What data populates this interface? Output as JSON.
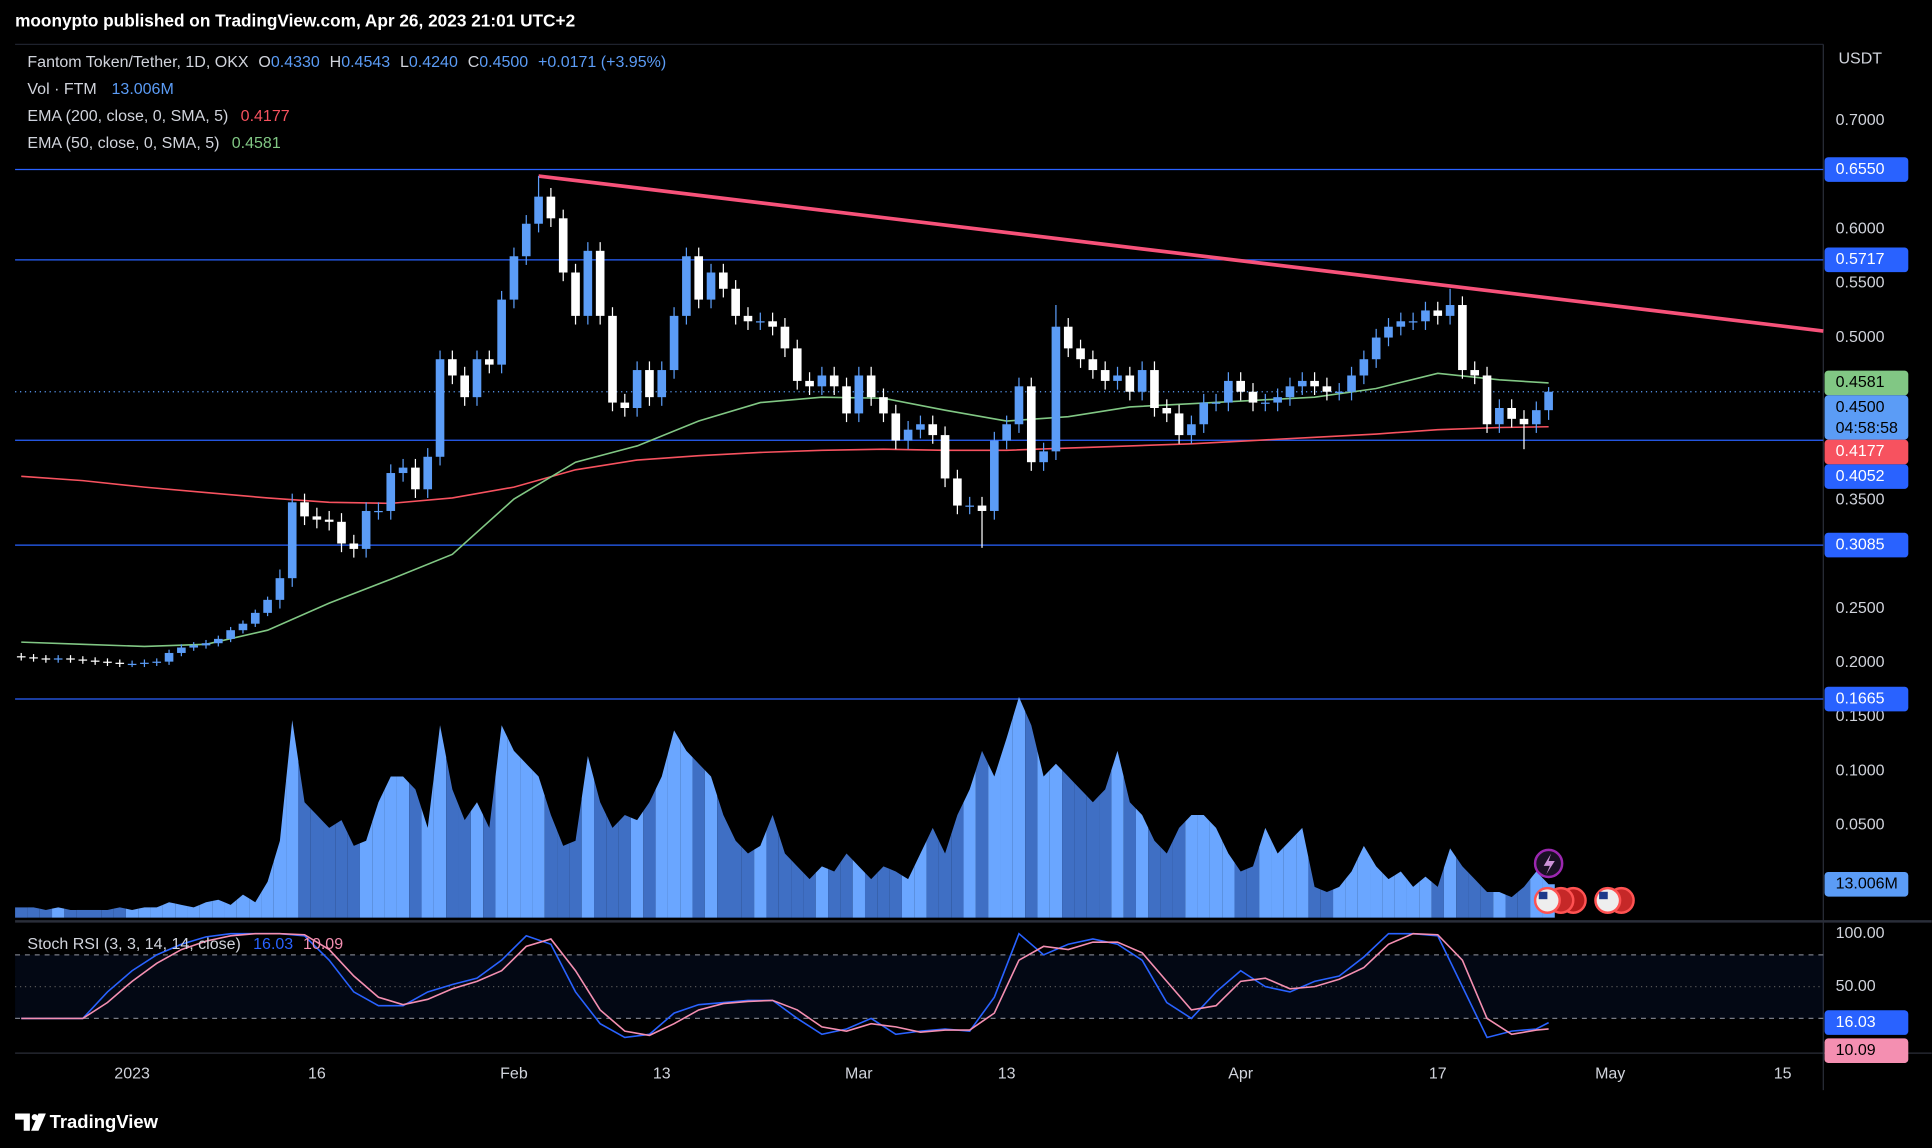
{
  "header": "moonypto published on TradingView.com, Apr 26, 2023 21:01 UTC+2",
  "footer": "TradingView",
  "chart_data": {
    "type": "candlestick",
    "legend": {
      "symbol": "Fantom Token/Tether, 1D, OKX",
      "ohlc": [
        [
          "O",
          "0.4330"
        ],
        [
          "H",
          "0.4543"
        ],
        [
          "L",
          "0.4240"
        ],
        [
          "C",
          "0.4500"
        ]
      ],
      "change": "+0.0171 (+3.95%)"
    },
    "axis_unit": "USDT",
    "up_color": "#5b9cf6",
    "down_color": "#ffffff",
    "xlim": [
      -0.5,
      146.3
    ],
    "xticks": [
      {
        "value": 9,
        "label": "2023"
      },
      {
        "value": 24,
        "label": "16"
      },
      {
        "value": 40,
        "label": "Feb"
      },
      {
        "value": 52,
        "label": "13"
      },
      {
        "value": 68,
        "label": "Mar"
      },
      {
        "value": 80,
        "label": "13"
      },
      {
        "value": 99,
        "label": "Apr"
      },
      {
        "value": 115,
        "label": "17"
      },
      {
        "value": 129,
        "label": "May"
      },
      {
        "value": 143,
        "label": "15"
      }
    ],
    "ylim": [
      -0.0352,
      0.7705
    ],
    "yticks": [
      {
        "value": 0.7,
        "label": "0.7000"
      },
      {
        "value": 0.6,
        "label": "0.6000"
      },
      {
        "value": 0.55,
        "label": "0.5500"
      },
      {
        "value": 0.5,
        "label": "0.5000"
      },
      {
        "value": 0.35,
        "label": "0.3500"
      },
      {
        "value": 0.25,
        "label": "0.2500"
      },
      {
        "value": 0.2,
        "label": "0.2000"
      },
      {
        "value": 0.15,
        "label": "0.1500"
      },
      {
        "value": 0.1,
        "label": "0.1000"
      },
      {
        "value": 0.05,
        "label": "0.0500"
      }
    ],
    "grid": false,
    "open": [
      0.206,
      0.205,
      0.204,
      0.203,
      0.204,
      0.203,
      0.202,
      0.201,
      0.2,
      0.199,
      0.199,
      0.2,
      0.201,
      0.209,
      0.214,
      0.216,
      0.218,
      0.222,
      0.23,
      0.236,
      0.246,
      0.258,
      0.278,
      0.348,
      0.335,
      0.332,
      0.33,
      0.31,
      0.305,
      0.34,
      0.34,
      0.375,
      0.38,
      0.36,
      0.39,
      0.48,
      0.465,
      0.445,
      0.48,
      0.475,
      0.535,
      0.575,
      0.605,
      0.63,
      0.61,
      0.56,
      0.52,
      0.58,
      0.52,
      0.44,
      0.435,
      0.47,
      0.445,
      0.47,
      0.52,
      0.575,
      0.535,
      0.56,
      0.545,
      0.52,
      0.515,
      0.515,
      0.51,
      0.49,
      0.46,
      0.455,
      0.465,
      0.455,
      0.43,
      0.465,
      0.445,
      0.43,
      0.405,
      0.415,
      0.42,
      0.41,
      0.37,
      0.345,
      0.345,
      0.34,
      0.405,
      0.42,
      0.455,
      0.385,
      0.395,
      0.51,
      0.49,
      0.48,
      0.47,
      0.46,
      0.465,
      0.45,
      0.47,
      0.435,
      0.43,
      0.41,
      0.42,
      0.44,
      0.44,
      0.46,
      0.45,
      0.44,
      0.44,
      0.445,
      0.455,
      0.46,
      0.455,
      0.45,
      0.45,
      0.465,
      0.48,
      0.5,
      0.51,
      0.515,
      0.515,
      0.525,
      0.52,
      0.53,
      0.47,
      0.465,
      0.42,
      0.435,
      0.425,
      0.42,
      0.433
    ],
    "high": [
      0.209,
      0.208,
      0.207,
      0.207,
      0.207,
      0.206,
      0.205,
      0.204,
      0.203,
      0.202,
      0.203,
      0.204,
      0.212,
      0.217,
      0.219,
      0.221,
      0.225,
      0.233,
      0.239,
      0.249,
      0.261,
      0.286,
      0.356,
      0.356,
      0.343,
      0.34,
      0.338,
      0.318,
      0.348,
      0.348,
      0.383,
      0.388,
      0.388,
      0.398,
      0.488,
      0.488,
      0.473,
      0.488,
      0.488,
      0.543,
      0.583,
      0.613,
      0.649,
      0.638,
      0.618,
      0.568,
      0.588,
      0.588,
      0.528,
      0.448,
      0.478,
      0.478,
      0.478,
      0.528,
      0.583,
      0.583,
      0.568,
      0.568,
      0.553,
      0.528,
      0.523,
      0.523,
      0.518,
      0.498,
      0.468,
      0.473,
      0.473,
      0.463,
      0.473,
      0.473,
      0.453,
      0.438,
      0.423,
      0.428,
      0.428,
      0.418,
      0.378,
      0.353,
      0.353,
      0.413,
      0.428,
      0.463,
      0.463,
      0.403,
      0.53,
      0.518,
      0.498,
      0.488,
      0.478,
      0.473,
      0.473,
      0.478,
      0.478,
      0.443,
      0.438,
      0.428,
      0.448,
      0.448,
      0.468,
      0.468,
      0.458,
      0.448,
      0.453,
      0.463,
      0.468,
      0.468,
      0.463,
      0.458,
      0.473,
      0.488,
      0.508,
      0.518,
      0.523,
      0.523,
      0.533,
      0.533,
      0.545,
      0.538,
      0.478,
      0.473,
      0.443,
      0.443,
      0.433,
      0.441,
      0.4543
    ],
    "low": [
      0.202,
      0.201,
      0.2,
      0.2,
      0.2,
      0.199,
      0.198,
      0.197,
      0.196,
      0.196,
      0.196,
      0.197,
      0.198,
      0.206,
      0.211,
      0.213,
      0.215,
      0.219,
      0.227,
      0.233,
      0.243,
      0.25,
      0.27,
      0.327,
      0.324,
      0.322,
      0.302,
      0.297,
      0.297,
      0.332,
      0.332,
      0.367,
      0.352,
      0.352,
      0.382,
      0.457,
      0.437,
      0.437,
      0.467,
      0.467,
      0.527,
      0.567,
      0.597,
      0.602,
      0.552,
      0.512,
      0.512,
      0.512,
      0.432,
      0.427,
      0.427,
      0.437,
      0.437,
      0.462,
      0.512,
      0.527,
      0.527,
      0.537,
      0.512,
      0.507,
      0.507,
      0.502,
      0.482,
      0.452,
      0.447,
      0.447,
      0.447,
      0.422,
      0.422,
      0.437,
      0.422,
      0.397,
      0.397,
      0.407,
      0.402,
      0.362,
      0.337,
      0.337,
      0.306,
      0.332,
      0.397,
      0.412,
      0.377,
      0.377,
      0.387,
      0.482,
      0.472,
      0.462,
      0.452,
      0.452,
      0.442,
      0.442,
      0.427,
      0.422,
      0.402,
      0.402,
      0.412,
      0.432,
      0.432,
      0.442,
      0.432,
      0.432,
      0.432,
      0.437,
      0.447,
      0.447,
      0.442,
      0.442,
      0.442,
      0.457,
      0.472,
      0.492,
      0.502,
      0.507,
      0.507,
      0.512,
      0.512,
      0.462,
      0.457,
      0.412,
      0.412,
      0.417,
      0.397,
      0.412,
      0.424
    ],
    "close": [
      0.205,
      0.204,
      0.203,
      0.204,
      0.203,
      0.202,
      0.201,
      0.2,
      0.199,
      0.199,
      0.2,
      0.201,
      0.209,
      0.214,
      0.216,
      0.218,
      0.222,
      0.23,
      0.236,
      0.246,
      0.258,
      0.278,
      0.348,
      0.335,
      0.332,
      0.33,
      0.31,
      0.305,
      0.34,
      0.34,
      0.375,
      0.38,
      0.36,
      0.39,
      0.48,
      0.465,
      0.445,
      0.48,
      0.475,
      0.535,
      0.575,
      0.605,
      0.63,
      0.61,
      0.56,
      0.52,
      0.58,
      0.52,
      0.44,
      0.435,
      0.47,
      0.445,
      0.47,
      0.52,
      0.575,
      0.535,
      0.56,
      0.545,
      0.52,
      0.515,
      0.515,
      0.51,
      0.49,
      0.46,
      0.455,
      0.465,
      0.455,
      0.43,
      0.465,
      0.445,
      0.43,
      0.405,
      0.415,
      0.42,
      0.41,
      0.37,
      0.345,
      0.345,
      0.34,
      0.405,
      0.42,
      0.455,
      0.385,
      0.395,
      0.51,
      0.49,
      0.48,
      0.47,
      0.46,
      0.465,
      0.45,
      0.47,
      0.435,
      0.43,
      0.41,
      0.42,
      0.44,
      0.44,
      0.46,
      0.45,
      0.44,
      0.44,
      0.445,
      0.455,
      0.46,
      0.455,
      0.45,
      0.45,
      0.465,
      0.48,
      0.5,
      0.51,
      0.515,
      0.515,
      0.525,
      0.52,
      0.53,
      0.47,
      0.465,
      0.42,
      0.435,
      0.425,
      0.42,
      0.433,
      0.45
    ],
    "volume": {
      "name": "Vol · FTM",
      "up_color": "#6aa6ff",
      "down_color": "#3f6fc4",
      "value_label": "13.006M",
      "values": [
        4,
        4,
        3,
        4,
        3,
        3,
        3,
        3,
        4,
        3,
        4,
        4,
        6,
        5,
        4,
        6,
        7,
        5,
        9,
        6,
        14,
        30,
        77,
        45,
        40,
        35,
        38,
        28,
        30,
        45,
        55,
        55,
        50,
        35,
        75,
        50,
        38,
        45,
        35,
        75,
        65,
        60,
        55,
        40,
        28,
        30,
        63,
        45,
        35,
        40,
        38,
        45,
        55,
        73,
        65,
        60,
        55,
        40,
        30,
        25,
        28,
        40,
        25,
        20,
        15,
        20,
        18,
        25,
        20,
        15,
        20,
        18,
        15,
        25,
        35,
        25,
        40,
        50,
        65,
        55,
        70,
        86,
        75,
        55,
        60,
        55,
        50,
        45,
        50,
        65,
        45,
        40,
        30,
        25,
        35,
        40,
        40,
        35,
        25,
        18,
        20,
        35,
        25,
        30,
        35,
        12,
        10,
        12,
        18,
        28,
        20,
        15,
        18,
        12,
        16,
        12,
        27,
        20,
        15,
        10,
        10,
        8,
        12,
        18,
        13.006
      ]
    },
    "indicators": [
      {
        "name": "EMA (200, close, 0, SMA, 5)",
        "color": "#f7525f",
        "value_label": "0.4177",
        "x": [
          0,
          5,
          10,
          15,
          20,
          25,
          30,
          35,
          40,
          45,
          50,
          55,
          60,
          65,
          70,
          75,
          80,
          85,
          90,
          95,
          100,
          105,
          110,
          115,
          120,
          124
        ],
        "values": [
          0.372,
          0.368,
          0.362,
          0.357,
          0.352,
          0.348,
          0.347,
          0.352,
          0.362,
          0.378,
          0.387,
          0.391,
          0.394,
          0.396,
          0.397,
          0.396,
          0.396,
          0.398,
          0.4,
          0.402,
          0.405,
          0.408,
          0.411,
          0.415,
          0.417,
          0.4177
        ]
      },
      {
        "name": "EMA (50, close, 0, SMA, 5)",
        "color": "#81c784",
        "value_label": "0.4581",
        "x": [
          0,
          5,
          10,
          15,
          20,
          25,
          30,
          35,
          40,
          45,
          50,
          55,
          60,
          65,
          70,
          75,
          80,
          85,
          90,
          95,
          100,
          105,
          110,
          115,
          120,
          124
        ],
        "values": [
          0.219,
          0.217,
          0.215,
          0.217,
          0.23,
          0.255,
          0.277,
          0.3,
          0.351,
          0.385,
          0.4,
          0.423,
          0.44,
          0.445,
          0.444,
          0.433,
          0.423,
          0.427,
          0.436,
          0.439,
          0.442,
          0.445,
          0.453,
          0.467,
          0.461,
          0.4581
        ]
      }
    ],
    "levels": [
      {
        "value": 0.655,
        "label": "0.6550"
      },
      {
        "value": 0.5717,
        "label": "0.5717"
      },
      {
        "value": 0.4052,
        "label": "0.4052"
      },
      {
        "value": 0.3085,
        "label": "0.3085"
      },
      {
        "value": 0.1665,
        "label": "0.1665"
      }
    ],
    "level_color": "#2962ff",
    "trendline": {
      "color": "#f7527a",
      "x": [
        42,
        146.3
      ],
      "values": [
        0.649,
        0.506
      ]
    },
    "last_price": {
      "value": 0.45,
      "label": "0.4500",
      "countdown": "04:58:58"
    },
    "stoch": {
      "title": "Stoch RSI (3, 3, 14, 14, close)",
      "ylim": [
        -12.8,
        109.3
      ],
      "yticks": [
        {
          "value": 100,
          "label": "100.00"
        },
        {
          "value": 50,
          "label": "50.00"
        }
      ],
      "bands": [
        80,
        20
      ],
      "x": [
        0,
        5,
        7,
        9,
        11,
        13,
        15,
        17,
        19,
        21,
        23,
        25,
        27,
        29,
        31,
        33,
        35,
        37,
        39,
        41,
        43,
        45,
        47,
        49,
        51,
        53,
        55,
        57,
        59,
        61,
        63,
        65,
        67,
        69,
        71,
        73,
        75,
        77,
        79,
        81,
        83,
        85,
        87,
        89,
        91,
        93,
        95,
        97,
        99,
        101,
        103,
        105,
        107,
        109,
        111,
        113,
        115,
        117,
        119,
        121,
        123,
        124
      ],
      "series": [
        {
          "color": "#2962ff",
          "value_label": "16.03",
          "values": [
            20,
            20,
            45,
            65,
            80,
            90,
            97,
            100,
            100,
            100,
            98,
            75,
            45,
            32,
            32,
            45,
            52,
            58,
            75,
            98,
            90,
            45,
            15,
            2,
            5,
            25,
            33,
            35,
            37,
            37,
            20,
            5,
            10,
            20,
            5,
            8,
            10,
            8,
            40,
            100,
            80,
            90,
            95,
            90,
            75,
            35,
            20,
            45,
            65,
            50,
            45,
            55,
            60,
            78,
            100,
            100,
            98,
            50,
            2,
            8,
            10,
            16.03
          ]
        },
        {
          "color": "#f48fb1",
          "value_label": "10.09",
          "values": [
            20,
            20,
            35,
            55,
            72,
            85,
            93,
            98,
            100,
            100,
            99,
            85,
            60,
            40,
            33,
            38,
            48,
            55,
            65,
            88,
            95,
            65,
            28,
            8,
            4,
            15,
            28,
            34,
            36,
            37,
            28,
            12,
            8,
            15,
            12,
            7,
            9,
            9,
            25,
            75,
            88,
            85,
            92,
            92,
            82,
            55,
            28,
            32,
            55,
            58,
            48,
            50,
            57,
            68,
            90,
            100,
            99,
            75,
            20,
            5,
            9,
            10.09
          ]
        }
      ]
    }
  }
}
